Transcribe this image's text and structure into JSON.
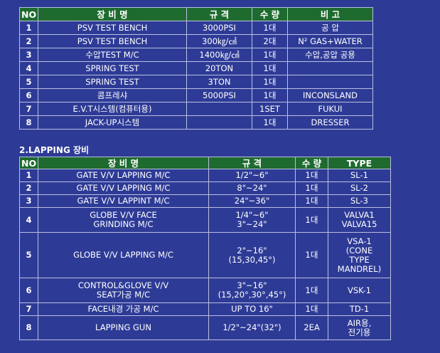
{
  "table1": {
    "headers": [
      "NO",
      "장 비 명",
      "규 격",
      "수 량",
      "비 고"
    ],
    "rows": [
      [
        "1",
        "PSV TEST BENCH",
        "3000PSI",
        "1대",
        "공 압"
      ],
      [
        "2",
        "PSV TEST BENCH",
        "300㎏/㎠",
        "2대",
        "N² GAS+WATER"
      ],
      [
        "3",
        "수압TEST M/C",
        "1400㎏/㎠",
        "1대",
        "수압,공압 공용"
      ],
      [
        "4",
        "SPRING TEST",
        "20TON",
        "1대",
        ""
      ],
      [
        "5",
        "SPRING TEST",
        "3TON",
        "1대",
        ""
      ],
      [
        "6",
        "콤프레샤",
        "5000PSI",
        "1대",
        "INCONSLAND"
      ],
      [
        "7",
        "E.V.T시스템(컴퓨터용)",
        "",
        "1SET",
        "FUKUI"
      ],
      [
        "8",
        "JACK-UP시스템",
        "",
        "1대",
        "DRESSER"
      ]
    ]
  },
  "section2_title": "2.LAPPING 장비",
  "table2": {
    "headers": [
      "NO",
      "장 비 명",
      "규 격",
      "수 량",
      "TYPE"
    ],
    "rows": [
      [
        "1",
        "GATE V/V LAPPING M/C",
        "1/2\"~6\"",
        "1대",
        "SL-1"
      ],
      [
        "2",
        "GATE V/V LAPPING M/C",
        "8\"~24\"",
        "1대",
        "SL-2"
      ],
      [
        "3",
        "GATE V/V LAPPINT M/C",
        "24\"~36\"",
        "1대",
        "SL-3"
      ],
      [
        "4",
        "GLOBE V/V FACE\nGRINDING M/C",
        "1/4\"~6\"\n3\"~24\"",
        "1대",
        "VALVA1\nVALVA15"
      ],
      [
        "5",
        "GLOBE V/V LAPPING M/C",
        "2\"~16\"\n(15,30,45°)",
        "1대",
        "VSA-1\n(CONE\nTYPE\nMANDREL)"
      ],
      [
        "6",
        "CONTROL&GLOVE V/V\nSEAT가공 M/C",
        "3\"~16\"\n(15,20°,30°,45°)",
        "1대",
        "VSK-1"
      ],
      [
        "7",
        "FACE내경 가공 M/C",
        "UP TO 16\"",
        "1대",
        "TD-1"
      ],
      [
        "8",
        "LAPPING GUN",
        "1/2\"~24\"(32\")",
        "2EA",
        "AIR용,\n전기용"
      ]
    ]
  }
}
